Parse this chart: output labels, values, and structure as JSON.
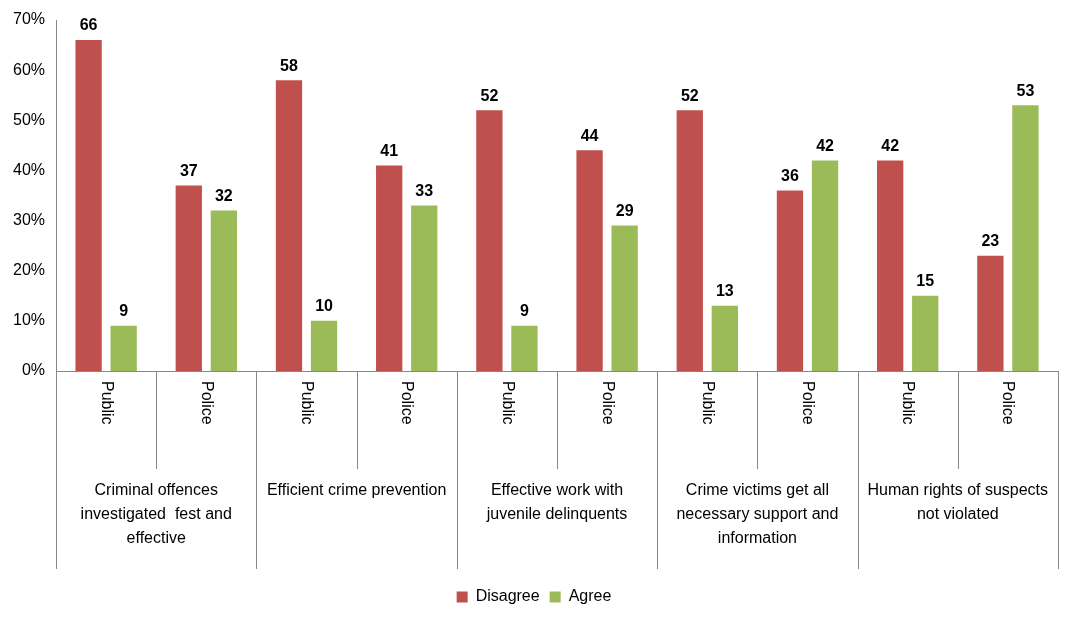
{
  "chart_data": {
    "type": "bar",
    "categories": [
      "Public",
      "Police",
      "Public",
      "Police",
      "Public",
      "Police",
      "Public",
      "Police",
      "Public",
      "Police"
    ],
    "series": [
      {
        "name": "Disagree",
        "color": "#c0504d",
        "values": [
          66,
          37,
          58,
          41,
          52,
          44,
          52,
          36,
          42,
          23
        ]
      },
      {
        "name": "Agree",
        "color": "#9bbb59",
        "values": [
          9,
          32,
          10,
          33,
          9,
          29,
          13,
          42,
          15,
          53
        ]
      }
    ],
    "ylim": [
      0,
      70
    ],
    "yticks": [
      {
        "value": 0,
        "label": "0%"
      },
      {
        "value": 10,
        "label": "10%"
      },
      {
        "value": 20,
        "label": "20%"
      },
      {
        "value": 30,
        "label": "30%"
      },
      {
        "value": 40,
        "label": "40%"
      },
      {
        "value": 50,
        "label": "50%"
      },
      {
        "value": 60,
        "label": "60%"
      },
      {
        "value": 70,
        "label": "70%"
      }
    ],
    "annotations": [
      "Criminal offences investigated  fest and effective",
      "Efficient crime prevention",
      "Effective work with juvenile delinquents",
      "Crime victims get all necessary support and information",
      "Human rights of suspects not violated"
    ],
    "data_labels": true,
    "grid": false,
    "legend": "bottom"
  }
}
